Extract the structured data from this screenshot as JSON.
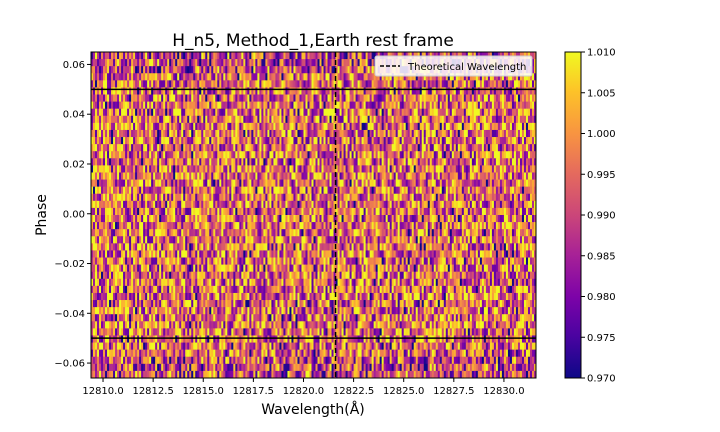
{
  "chart_data": {
    "type": "heatmap",
    "title": "H_n5, Method_1,Earth rest frame",
    "xlabel": "Wavelength(Å)",
    "ylabel": "Phase",
    "xlim": [
      12809.4,
      12831.6
    ],
    "ylim": [
      -0.066,
      0.065
    ],
    "x_ticks": [
      12810.0,
      12812.5,
      12815.0,
      12817.5,
      12820.0,
      12822.5,
      12825.0,
      12827.5,
      12830.0
    ],
    "x_tick_labels": [
      "12810.0",
      "12812.5",
      "12815.0",
      "12817.5",
      "12820.0",
      "12822.5",
      "12825.0",
      "12827.5",
      "12830.0"
    ],
    "y_ticks": [
      0.06,
      0.04,
      0.02,
      0.0,
      -0.02,
      -0.04,
      -0.06
    ],
    "y_tick_labels": [
      "0.06",
      "0.04",
      "0.02",
      "0.00",
      "−0.02",
      "−0.04",
      "−0.06"
    ],
    "theoretical_wavelength": 12821.6,
    "phase_boundaries": [
      0.05,
      -0.05
    ],
    "legend": {
      "label": "Theoretical Wavelength",
      "location": "upper-right"
    },
    "colorbar": {
      "colormap": "plasma",
      "min": 0.97,
      "max": 1.01,
      "ticks": [
        1.01,
        1.005,
        1.0,
        0.995,
        0.99,
        0.985,
        0.98,
        0.975,
        0.97
      ],
      "tick_labels": [
        "1.010",
        "1.005",
        "1.000",
        "0.995",
        "0.990",
        "0.985",
        "0.980",
        "0.975",
        "0.970"
      ]
    },
    "grid": false
  }
}
